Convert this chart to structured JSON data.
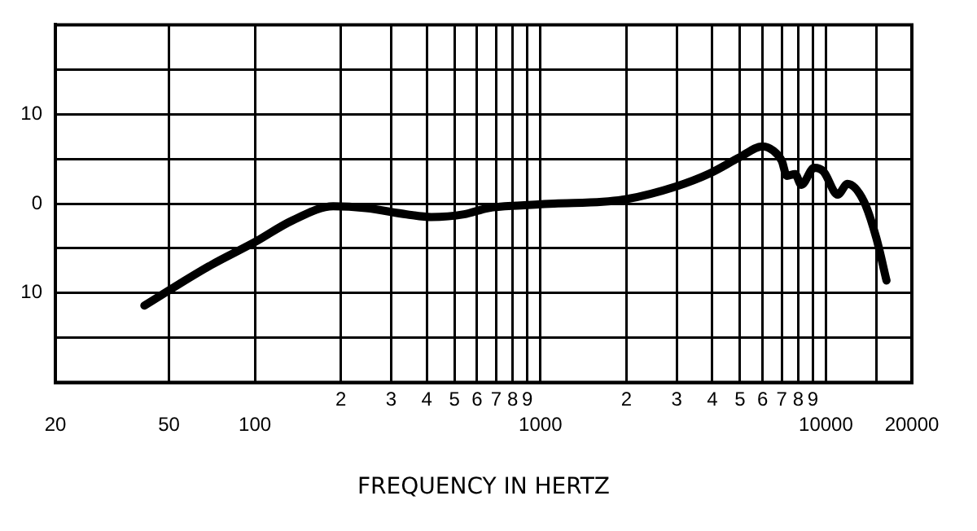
{
  "chart_data": {
    "type": "line",
    "xlabel": "FREQUENCY IN HERTZ",
    "log": "x",
    "grid": true,
    "marker": "none",
    "line_style": "solid",
    "x": [
      41,
      50,
      70,
      100,
      135,
      188,
      245,
      340,
      415,
      540,
      656,
      855,
      1120,
      1650,
      2000,
      2970,
      3930,
      5000,
      6000,
      6550,
      7000,
      7300,
      7800,
      8200,
      9100,
      9800,
      11000,
      11900,
      13600,
      15000,
      16300
    ],
    "series": [
      {
        "color": "#000000",
        "values": [
          -11.4,
          -9.7,
          -6.9,
          -4.3,
          -1.9,
          -0.3,
          -0.5,
          -1.2,
          -1.5,
          -1.2,
          -0.5,
          -0.2,
          0,
          0.2,
          0.5,
          1.9,
          3.4,
          5.2,
          6.4,
          5.9,
          4.8,
          3.1,
          3.3,
          2.1,
          4.0,
          3.6,
          1.0,
          2.2,
          0.2,
          -3.8,
          -8.6
        ]
      }
    ],
    "xlim": [
      20,
      20000
    ],
    "xticks": [
      20,
      50,
      100,
      {
        "value": 200,
        "label": null
      },
      {
        "value": 300,
        "label": null
      },
      {
        "value": 400,
        "label": null
      },
      {
        "value": 500,
        "label": null
      },
      {
        "value": 600,
        "label": null
      },
      {
        "value": 700,
        "label": null
      },
      {
        "value": 800,
        "label": null
      },
      {
        "value": 900,
        "label": null
      },
      1000,
      {
        "value": 2000,
        "label": null
      },
      {
        "value": 3000,
        "label": null
      },
      {
        "value": 4000,
        "label": null
      },
      {
        "value": 5000,
        "label": null
      },
      {
        "value": 6000,
        "label": null
      },
      {
        "value": 7000,
        "label": null
      },
      {
        "value": 8000,
        "label": null
      },
      {
        "value": 9000,
        "label": null
      },
      10000,
      {
        "value": 15000,
        "label": null
      },
      20000
    ],
    "annotations": [
      "2",
      "3",
      "4",
      "5",
      "6",
      "7",
      "8",
      "9",
      "2",
      "3",
      "4",
      "5",
      "6",
      "7",
      "8",
      "9"
    ],
    "ylim": [
      -20,
      20
    ],
    "yticks": [
      {
        "value": -20,
        "label": null
      },
      {
        "value": -15,
        "label": null
      },
      {
        "value": -10,
        "label": "10"
      },
      {
        "value": -5,
        "label": null
      },
      0,
      {
        "value": 5,
        "label": null
      },
      10,
      {
        "value": 15,
        "label": null
      },
      {
        "value": 20,
        "label": null
      }
    ],
    "legend": false
  }
}
